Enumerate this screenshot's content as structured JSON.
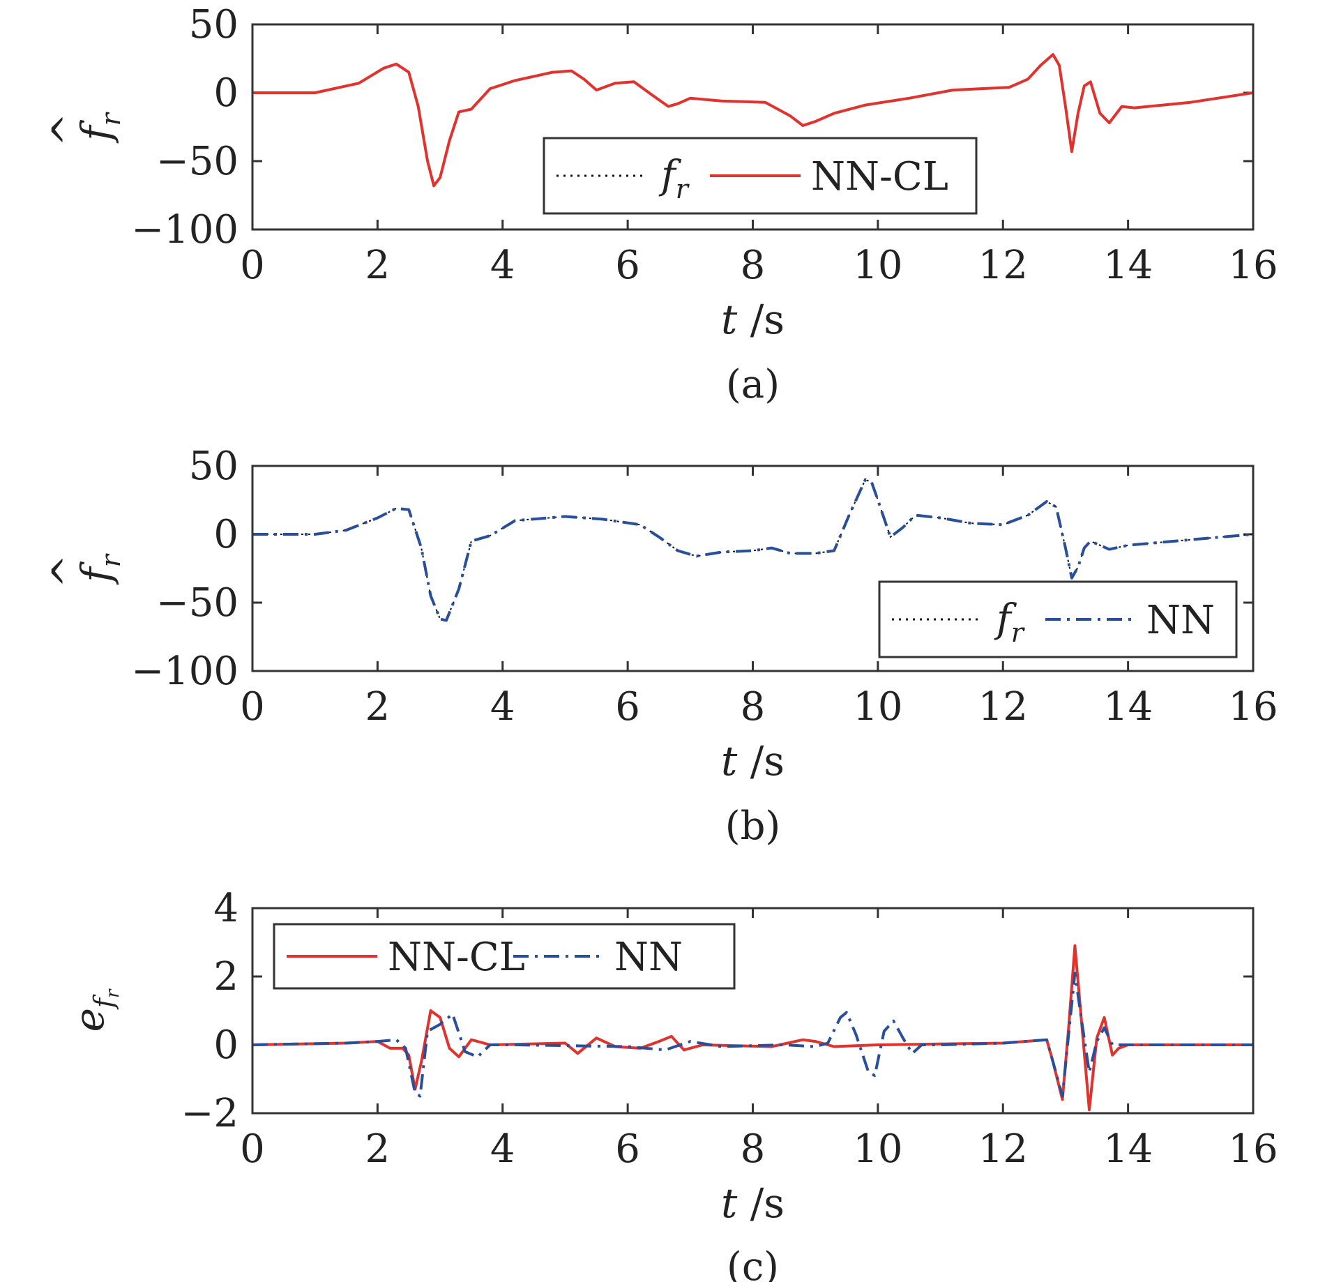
{
  "colors": {
    "nncl": "#e0332e",
    "nn": "#2a4f9a",
    "reference": "#111111"
  },
  "chart_data": [
    {
      "type": "line",
      "caption": "(a)",
      "xlabel_var": "t",
      "xlabel_unit": " /s",
      "ylabel_main": "f",
      "ylabel_hat": "^",
      "ylabel_sub": "r",
      "xlim": [
        0,
        16
      ],
      "ylim": [
        -100,
        50
      ],
      "xticks": [
        0,
        2,
        4,
        6,
        8,
        10,
        12,
        14,
        16
      ],
      "yticks": [
        50,
        0,
        -50,
        -100
      ],
      "ytick_labels": [
        "50",
        "0",
        "−50",
        "−100"
      ],
      "legend": {
        "placement": "lower-center",
        "ref_main": "f",
        "ref_sub": "r",
        "entries": [
          "NN-CL"
        ]
      },
      "series": [
        {
          "name": "NN-CL",
          "style": "solid",
          "color_key": "nncl",
          "x": [
            0,
            1,
            1.7,
            2.1,
            2.3,
            2.5,
            2.65,
            2.8,
            2.9,
            3.0,
            3.15,
            3.3,
            3.5,
            3.8,
            4.2,
            4.8,
            5.1,
            5.3,
            5.5,
            5.8,
            6.1,
            6.4,
            6.65,
            6.8,
            7.0,
            7.5,
            8.2,
            8.6,
            8.8,
            9.0,
            9.3,
            9.8,
            10.5,
            11.2,
            12.1,
            12.4,
            12.6,
            12.8,
            12.9,
            13.0,
            13.1,
            13.2,
            13.3,
            13.4,
            13.55,
            13.7,
            13.9,
            14.1,
            15,
            16
          ],
          "y": [
            0,
            0,
            7,
            18,
            21,
            15,
            -10,
            -50,
            -68,
            -62,
            -35,
            -14,
            -12,
            3,
            9,
            15,
            16,
            10,
            2,
            7,
            8,
            -2,
            -10,
            -8,
            -4,
            -6,
            -7,
            -17,
            -24,
            -21,
            -15,
            -9,
            -4,
            2,
            4,
            10,
            20,
            28,
            20,
            -10,
            -43,
            -15,
            5,
            8,
            -15,
            -22,
            -10,
            -11,
            -7,
            0
          ]
        }
      ]
    },
    {
      "type": "line",
      "caption": "(b)",
      "xlabel_var": "t",
      "xlabel_unit": " /s",
      "ylabel_main": "f",
      "ylabel_hat": "^",
      "ylabel_sub": "r",
      "xlim": [
        0,
        16
      ],
      "ylim": [
        -100,
        50
      ],
      "xticks": [
        0,
        2,
        4,
        6,
        8,
        10,
        12,
        14,
        16
      ],
      "yticks": [
        50,
        0,
        -50,
        -100
      ],
      "ytick_labels": [
        "50",
        "0",
        "−50",
        "−100"
      ],
      "legend": {
        "placement": "lower-right",
        "ref_main": "f",
        "ref_sub": "r",
        "entries": [
          "NN"
        ]
      },
      "series": [
        {
          "name": "NN",
          "style": "dashdot",
          "color_key": "nn",
          "x": [
            0,
            1,
            1.5,
            2.0,
            2.3,
            2.5,
            2.7,
            2.85,
            3.0,
            3.1,
            3.3,
            3.5,
            3.8,
            4.2,
            5.0,
            5.6,
            6.2,
            6.5,
            6.8,
            7.1,
            7.5,
            8.0,
            8.3,
            8.6,
            9.0,
            9.3,
            9.55,
            9.8,
            9.9,
            10.0,
            10.2,
            10.4,
            10.6,
            11.0,
            11.5,
            12.0,
            12.4,
            12.7,
            12.85,
            13.0,
            13.1,
            13.2,
            13.3,
            13.4,
            13.55,
            13.7,
            14.0,
            15,
            16
          ],
          "y": [
            0,
            0,
            3,
            12,
            19,
            18,
            -10,
            -45,
            -62,
            -63,
            -40,
            -5,
            -1,
            10,
            13,
            11,
            7,
            -2,
            -12,
            -16,
            -13,
            -12,
            -10,
            -14,
            -14,
            -12,
            15,
            40,
            38,
            25,
            -2,
            5,
            14,
            12,
            8,
            7,
            14,
            24,
            20,
            -10,
            -32,
            -24,
            -10,
            -5,
            -8,
            -11,
            -8,
            -4,
            0
          ]
        }
      ]
    },
    {
      "type": "line",
      "caption": "(c)",
      "xlabel_var": "t",
      "xlabel_unit": " /s",
      "ylabel_main": "e",
      "ylabel_sub": "f",
      "ylabel_subsub": "r",
      "xlim": [
        0,
        16
      ],
      "ylim": [
        -2,
        4
      ],
      "xticks": [
        0,
        2,
        4,
        6,
        8,
        10,
        12,
        14,
        16
      ],
      "yticks": [
        4,
        2,
        0,
        -2
      ],
      "ytick_labels": [
        "4",
        "2",
        "0",
        "−2"
      ],
      "legend": {
        "placement": "top-left",
        "entries": [
          "NN-CL",
          "NN"
        ]
      },
      "series": [
        {
          "name": "NN-CL",
          "style": "solid",
          "color_key": "nncl",
          "x": [
            0,
            1.5,
            2.0,
            2.2,
            2.4,
            2.5,
            2.6,
            2.7,
            2.85,
            3.0,
            3.15,
            3.3,
            3.5,
            3.8,
            5.0,
            5.2,
            5.5,
            5.8,
            6.2,
            6.5,
            6.7,
            6.9,
            7.2,
            8.3,
            8.8,
            9.0,
            9.3,
            10,
            12.0,
            12.7,
            12.8,
            12.95,
            13.05,
            13.15,
            13.25,
            13.38,
            13.5,
            13.62,
            13.75,
            13.85,
            14.0,
            14.2,
            16
          ],
          "y": [
            0,
            0.05,
            0.1,
            -0.1,
            -0.1,
            -0.3,
            -1.3,
            -0.5,
            1.0,
            0.8,
            -0.1,
            -0.35,
            0.15,
            0.0,
            0.05,
            -0.25,
            0.2,
            -0.05,
            -0.1,
            0.1,
            0.25,
            -0.15,
            0.0,
            -0.05,
            0.15,
            0.1,
            -0.05,
            0.0,
            0.05,
            0.15,
            -0.5,
            -1.6,
            0.5,
            2.9,
            0.8,
            -1.9,
            0.2,
            0.8,
            -0.3,
            -0.1,
            0.0,
            0.0,
            0.0
          ]
        },
        {
          "name": "NN",
          "style": "dashdot",
          "color_key": "nn",
          "x": [
            0,
            1.5,
            2.0,
            2.3,
            2.45,
            2.6,
            2.68,
            2.8,
            3.0,
            3.2,
            3.4,
            3.6,
            3.8,
            4.2,
            6.0,
            6.6,
            7.0,
            7.5,
            8.5,
            9.0,
            9.2,
            9.4,
            9.5,
            9.65,
            9.85,
            9.95,
            10.1,
            10.25,
            10.4,
            10.55,
            10.7,
            11.0,
            12.0,
            12.7,
            12.8,
            12.95,
            13.05,
            13.15,
            13.25,
            13.38,
            13.5,
            13.62,
            13.75,
            14.0,
            16
          ],
          "y": [
            0,
            0.05,
            0.1,
            0.15,
            -0.1,
            -1.4,
            -1.5,
            0.4,
            0.6,
            0.9,
            -0.2,
            -0.35,
            0.0,
            0.0,
            -0.05,
            -0.15,
            0.1,
            -0.05,
            0.0,
            -0.05,
            0.05,
            0.8,
            0.95,
            0.3,
            -0.8,
            -0.9,
            0.4,
            0.7,
            0.2,
            -0.25,
            0.0,
            0.0,
            0.05,
            0.15,
            -0.5,
            -1.5,
            0.3,
            2.1,
            0.8,
            -0.8,
            0.1,
            0.5,
            0.0,
            0.0,
            0.0
          ]
        }
      ]
    }
  ]
}
